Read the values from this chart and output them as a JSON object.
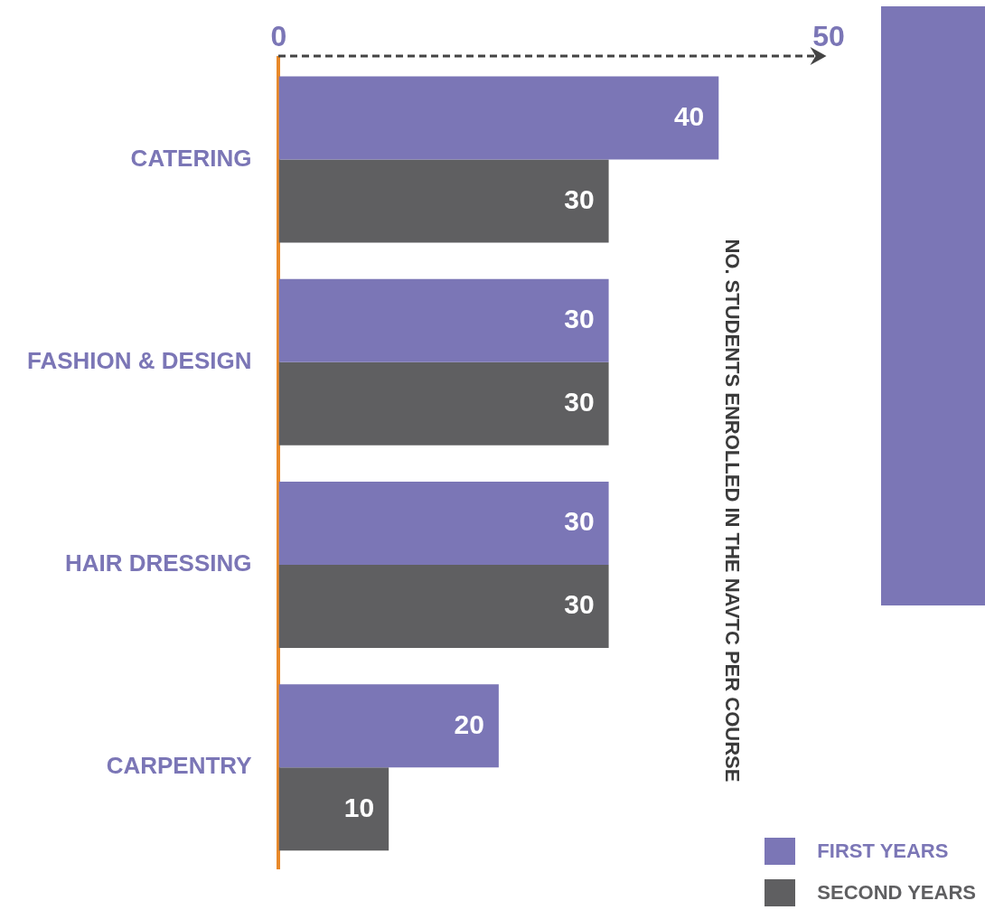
{
  "chart_data": {
    "type": "bar",
    "orientation": "horizontal",
    "annotations": [
      "NO. STUDENTS ENROLLED IN THE NAVTC PER COURSE"
    ],
    "categories": [
      "CATERING",
      "FASHION & DESIGN",
      "HAIR DRESSING",
      "CARPENTRY"
    ],
    "series": [
      {
        "name": "FIRST YEARS",
        "color": "#7b76b6",
        "values": [
          40,
          30,
          30,
          20
        ]
      },
      {
        "name": "SECOND YEARS",
        "color": "#5f5f61",
        "values": [
          30,
          30,
          30,
          10
        ]
      }
    ],
    "xlim": [
      0,
      50
    ],
    "xticks": [
      0,
      50
    ],
    "data_labels": true,
    "grid": false,
    "legend": "bottom right"
  }
}
